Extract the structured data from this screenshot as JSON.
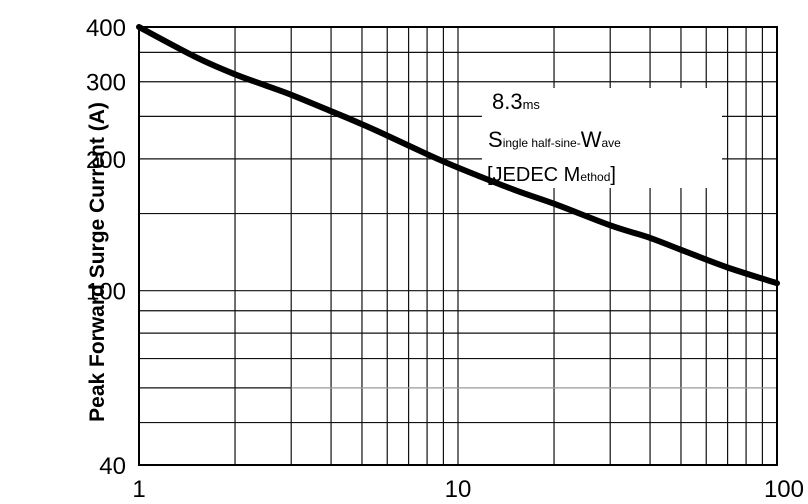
{
  "chart_data": {
    "type": "line",
    "title": "",
    "xlabel": "",
    "ylabel": "Peak Forward Surge Current (A)",
    "x_scale": "log",
    "y_scale": "log",
    "xlim": [
      1,
      100
    ],
    "ylim": [
      40,
      400
    ],
    "grid": true,
    "x_ticks": [
      "1",
      "10",
      "100"
    ],
    "y_ticks": [
      "400",
      "300",
      "200",
      "100",
      "40"
    ],
    "annotation": {
      "line1_main": "8.3",
      "line1_sub": "ms",
      "line2_a": "S",
      "line2_a_sub": "ingle half-sine-",
      "line2_b": "W",
      "line2_b_sub": "ave",
      "line3_a": "[JEDEC M",
      "line3_a_sub": "ethod",
      "line3_b": "]"
    },
    "series": [
      {
        "x": [
          1,
          1.5,
          2,
          2.5,
          3,
          4,
          5,
          6,
          8,
          10,
          15,
          20,
          30,
          40,
          50,
          70,
          100
        ],
        "values": [
          400,
          342,
          312,
          294,
          280,
          257,
          240,
          226,
          205,
          191,
          170,
          158,
          141,
          132,
          124,
          113,
          104
        ],
        "color": "#000000"
      }
    ]
  }
}
